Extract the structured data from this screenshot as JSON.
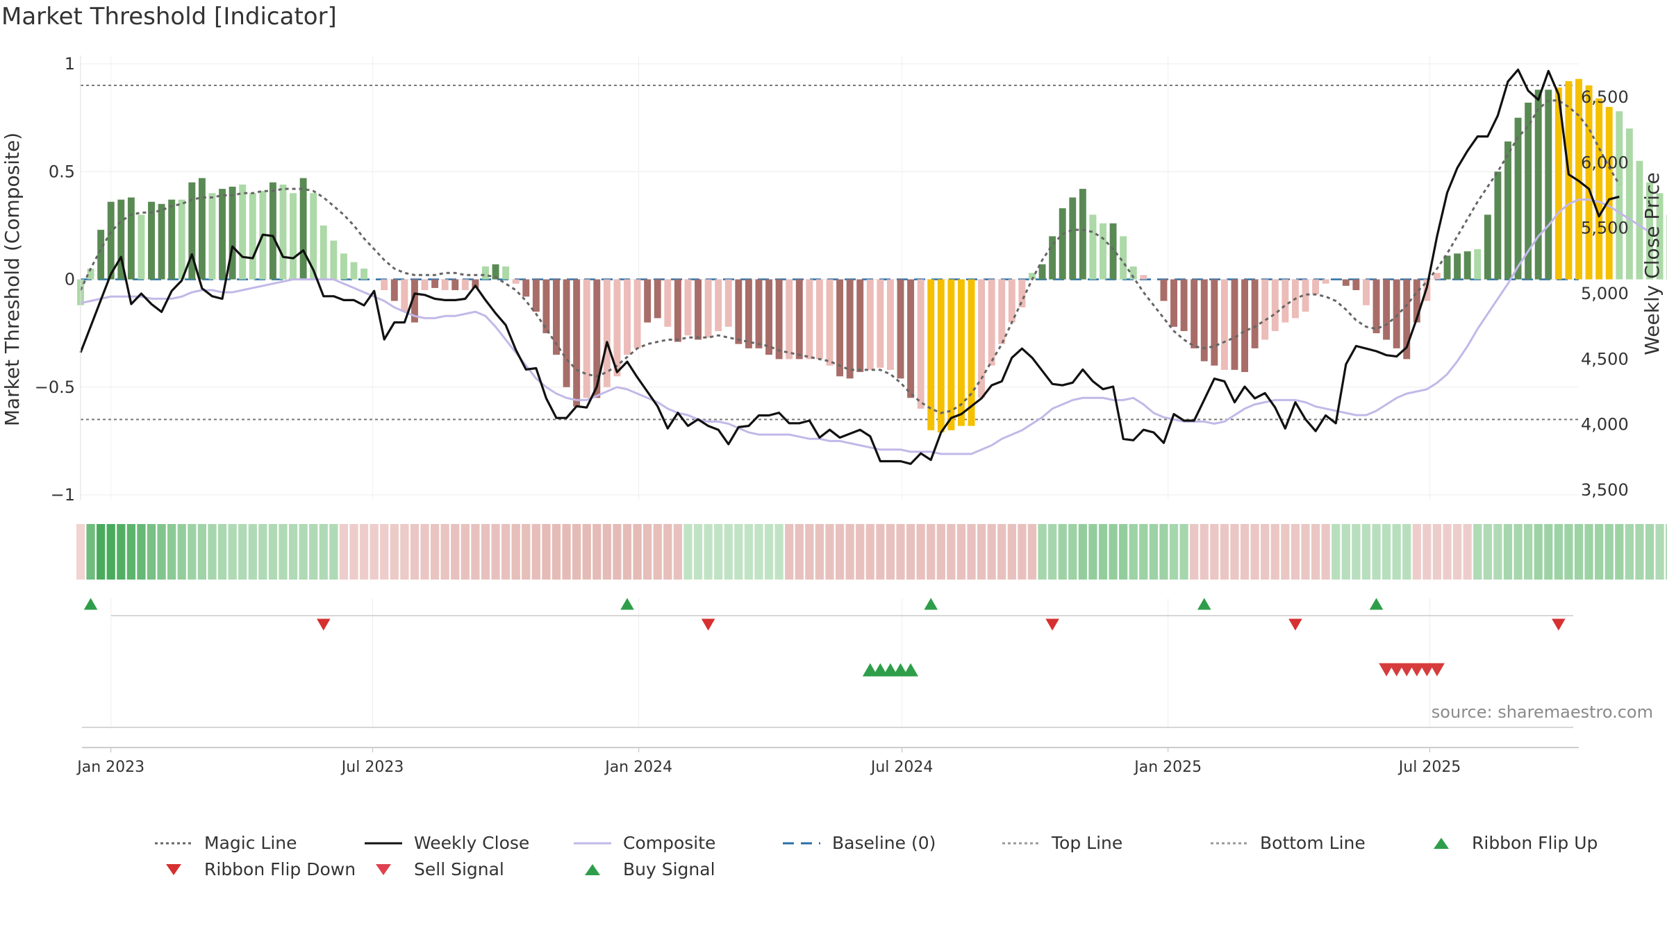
{
  "title": "Market Threshold [Indicator]",
  "source": "source: sharemaestro.com",
  "colors": {
    "bull_dark": "#5a8a54",
    "bull_light": "#acd9a7",
    "bear_dark": "#a86d68",
    "bear_light": "#ecbcb8",
    "extreme": "#f5c000",
    "weekly_close": "#111111",
    "composite": "#c2b8e8",
    "magic_line": "#666666",
    "baseline": "#2a6fa8",
    "buy": "#2e9e4a",
    "sell": "#d63c3c",
    "flip_up": "#2e9e4a",
    "flip_down": "#d63030",
    "ribbon_pos": "#3fa84f",
    "ribbon_neg": "#e8b8b5"
  },
  "legend": [
    {
      "key": "magic",
      "label": "Magic Line",
      "icon": "dotted-line-icon",
      "color": "#666666"
    },
    {
      "key": "close",
      "label": "Weekly Close",
      "icon": "solid-line-icon",
      "color": "#111111"
    },
    {
      "key": "composite",
      "label": "Composite",
      "icon": "solid-line-icon",
      "color": "#c2b8e8"
    },
    {
      "key": "baseline",
      "label": "Baseline (0)",
      "icon": "dashed-line-icon",
      "color": "#2a6fa8"
    },
    {
      "key": "top",
      "label": "Top Line",
      "icon": "dotted-line-icon",
      "color": "#999999"
    },
    {
      "key": "bottom",
      "label": "Bottom Line",
      "icon": "dotted-line-icon",
      "color": "#999999"
    },
    {
      "key": "flip_up",
      "label": "Ribbon Flip Up",
      "icon": "triangle-up-icon",
      "color": "#2e9e4a"
    },
    {
      "key": "flip_down",
      "label": "Ribbon Flip Down",
      "icon": "triangle-down-icon",
      "color": "#d63030"
    },
    {
      "key": "sell",
      "label": "Sell Signal",
      "icon": "triangle-down-icon",
      "color": "#e04050"
    },
    {
      "key": "buy",
      "label": "Buy Signal",
      "icon": "triangle-up-icon",
      "color": "#2e9e4a"
    }
  ],
  "chart_data": {
    "type": "bar",
    "title": "Market Threshold [Indicator]",
    "ylabel": "Market Threshold (Composite)",
    "y2label": "Weekly Close Price",
    "ylim": [
      -1,
      1
    ],
    "y2lim": [
      3400,
      6720
    ],
    "y_ticks": [
      1,
      0.5,
      0,
      -0.5,
      -1
    ],
    "y_tick_labels": [
      "1",
      "0.5",
      "0",
      "−0.5",
      "−1"
    ],
    "y2_ticks": [
      6500,
      6000,
      5500,
      5000,
      4500,
      4000,
      3500
    ],
    "y2_tick_labels": [
      "6,500",
      "6,000",
      "5,500",
      "5,000",
      "4,500",
      "4,000",
      "3,500"
    ],
    "x_ticks": [
      "2023-01-01",
      "2023-07-01",
      "2024-01-01",
      "2024-07-01",
      "2025-01-01",
      "2025-07-01"
    ],
    "x_tick_labels": [
      "Jan 2023",
      "Jul 2023",
      "Jan 2024",
      "Jul 2024",
      "Jan 2025",
      "Jul 2025"
    ],
    "x_range": [
      "2022-12-11",
      "2025-10-12"
    ],
    "weekly_start": "2022-12-11",
    "top_line": 0.9,
    "bottom_line": -0.65,
    "baseline": 0,
    "grid": true,
    "legend_position": "bottom",
    "composite_bars": [
      -0.12,
      0.05,
      0.23,
      0.36,
      0.37,
      0.38,
      0.3,
      0.36,
      0.35,
      0.37,
      0.37,
      0.45,
      0.47,
      0.4,
      0.42,
      0.43,
      0.44,
      0.4,
      0.41,
      0.45,
      0.44,
      0.4,
      0.47,
      0.4,
      0.25,
      0.18,
      0.12,
      0.08,
      0.05,
      0,
      -0.05,
      -0.1,
      -0.15,
      -0.2,
      -0.05,
      -0.04,
      -0.05,
      -0.05,
      -0.05,
      -0.04,
      0.06,
      0.07,
      0.06,
      -0.02,
      -0.08,
      -0.15,
      -0.25,
      -0.35,
      -0.5,
      -0.59,
      -0.55,
      -0.55,
      -0.5,
      -0.45,
      -0.35,
      -0.32,
      -0.2,
      -0.18,
      -0.22,
      -0.29,
      -0.26,
      -0.28,
      -0.27,
      -0.24,
      -0.22,
      -0.3,
      -0.32,
      -0.32,
      -0.35,
      -0.37,
      -0.37,
      -0.37,
      -0.37,
      -0.37,
      -0.4,
      -0.45,
      -0.46,
      -0.43,
      -0.42,
      -0.41,
      -0.42,
      -0.46,
      -0.55,
      -0.6,
      -0.7,
      -0.71,
      -0.7,
      -0.68,
      -0.68,
      -0.55,
      -0.4,
      -0.3,
      -0.2,
      -0.13,
      0.03,
      0.07,
      0.2,
      0.33,
      0.38,
      0.42,
      0.3,
      0.26,
      0.26,
      0.2,
      0.06,
      0.02,
      0,
      -0.1,
      -0.22,
      -0.24,
      -0.32,
      -0.38,
      -0.4,
      -0.42,
      -0.42,
      -0.43,
      -0.32,
      -0.28,
      -0.24,
      -0.2,
      -0.18,
      -0.15,
      -0.07,
      -0.02,
      0,
      -0.03,
      -0.05,
      -0.12,
      -0.25,
      -0.28,
      -0.32,
      -0.37,
      -0.2,
      -0.1,
      0.03,
      0.11,
      0.12,
      0.13,
      0.14,
      0.3,
      0.5,
      0.64,
      0.75,
      0.82,
      0.88,
      0.88,
      0.89,
      0.92,
      0.93,
      0.9,
      0.84,
      0.8,
      0.78,
      0.7,
      0.55,
      0.45,
      0.4,
      0.3,
      0.27,
      0.21
    ],
    "bar_shade": [
      "bl",
      "bl",
      "bd",
      "bd",
      "bd",
      "bd",
      "bl",
      "bd",
      "bd",
      "bd",
      "bl",
      "bd",
      "bd",
      "bl",
      "bd",
      "bd",
      "bl",
      "bl",
      "bl",
      "bd",
      "bl",
      "bl",
      "bd",
      "bl",
      "bl",
      "bl",
      "bl",
      "bl",
      "bl",
      "bl",
      "rl",
      "rd",
      "rl",
      "rd",
      "rl",
      "rd",
      "rl",
      "rd",
      "rl",
      "rd",
      "bl",
      "bd",
      "bl",
      "rl",
      "rd",
      "rd",
      "rd",
      "rd",
      "rd",
      "rd",
      "rl",
      "rd",
      "rl",
      "rl",
      "rl",
      "rl",
      "rd",
      "rd",
      "rl",
      "rd",
      "rl",
      "rd",
      "rl",
      "rl",
      "rl",
      "rd",
      "rd",
      "rd",
      "rd",
      "rd",
      "rl",
      "rd",
      "rl",
      "rl",
      "rl",
      "rd",
      "rd",
      "rd",
      "rl",
      "rl",
      "rl",
      "rd",
      "rd",
      "rl",
      "yy",
      "yy",
      "yy",
      "yy",
      "yy",
      "rl",
      "rl",
      "rl",
      "rl",
      "rl",
      "bl",
      "bd",
      "bd",
      "bd",
      "bd",
      "bd",
      "bl",
      "bl",
      "bd",
      "bl",
      "bl",
      "rl",
      "rl",
      "rd",
      "rd",
      "rd",
      "rd",
      "rd",
      "rd",
      "rl",
      "rd",
      "rd",
      "rd",
      "rl",
      "rl",
      "rl",
      "rl",
      "rl",
      "rl",
      "rl",
      "rl",
      "rd",
      "rd",
      "rl",
      "rd",
      "rd",
      "rd",
      "rd",
      "rd",
      "rl",
      "rl",
      "bd",
      "bd",
      "bd",
      "bl",
      "bd",
      "bd",
      "bd",
      "bd",
      "bd",
      "bd",
      "bd",
      "yy",
      "yy",
      "yy",
      "yy",
      "yy",
      "yy",
      "bl",
      "bl",
      "bl",
      "bl",
      "bl",
      "bl",
      "bl",
      "bl",
      "bl",
      "bl"
    ],
    "magic_line": [
      -0.05,
      0.05,
      0.14,
      0.22,
      0.27,
      0.3,
      0.31,
      0.31,
      0.32,
      0.34,
      0.35,
      0.37,
      0.38,
      0.38,
      0.39,
      0.39,
      0.4,
      0.4,
      0.41,
      0.41,
      0.42,
      0.42,
      0.42,
      0.41,
      0.38,
      0.34,
      0.3,
      0.25,
      0.19,
      0.14,
      0.09,
      0.05,
      0.03,
      0.02,
      0.02,
      0.02,
      0.03,
      0.03,
      0.02,
      0.02,
      0.02,
      0.01,
      -0.02,
      -0.05,
      -0.1,
      -0.16,
      -0.23,
      -0.3,
      -0.37,
      -0.42,
      -0.44,
      -0.45,
      -0.43,
      -0.4,
      -0.36,
      -0.32,
      -0.3,
      -0.29,
      -0.28,
      -0.28,
      -0.27,
      -0.27,
      -0.27,
      -0.26,
      -0.27,
      -0.28,
      -0.29,
      -0.3,
      -0.31,
      -0.33,
      -0.34,
      -0.35,
      -0.36,
      -0.37,
      -0.38,
      -0.4,
      -0.42,
      -0.42,
      -0.42,
      -0.42,
      -0.44,
      -0.48,
      -0.53,
      -0.57,
      -0.6,
      -0.62,
      -0.61,
      -0.58,
      -0.53,
      -0.46,
      -0.38,
      -0.3,
      -0.2,
      -0.1,
      0,
      0.09,
      0.16,
      0.21,
      0.23,
      0.23,
      0.22,
      0.19,
      0.14,
      0.08,
      0.01,
      -0.06,
      -0.12,
      -0.18,
      -0.24,
      -0.28,
      -0.31,
      -0.32,
      -0.31,
      -0.29,
      -0.27,
      -0.24,
      -0.22,
      -0.19,
      -0.16,
      -0.12,
      -0.09,
      -0.07,
      -0.07,
      -0.08,
      -0.1,
      -0.14,
      -0.19,
      -0.22,
      -0.23,
      -0.21,
      -0.17,
      -0.12,
      -0.06,
      -0.01,
      0.05,
      0.12,
      0.2,
      0.28,
      0.36,
      0.43,
      0.5,
      0.58,
      0.66,
      0.71,
      0.79,
      0.83,
      0.83,
      0.8,
      0.76,
      0.7,
      0.61,
      0.52,
      0.44
    ],
    "weekly_close": [
      4550,
      4750,
      4950,
      5150,
      5280,
      4920,
      5000,
      4920,
      4860,
      5020,
      5100,
      5300,
      5040,
      4980,
      4960,
      5360,
      5280,
      5270,
      5450,
      5440,
      5280,
      5270,
      5330,
      5180,
      4980,
      4980,
      4950,
      4950,
      4910,
      5020,
      4650,
      4780,
      4780,
      5000,
      4990,
      4960,
      4950,
      4950,
      4960,
      5060,
      4950,
      4850,
      4760,
      4570,
      4420,
      4430,
      4200,
      4050,
      4050,
      4140,
      4130,
      4290,
      4630,
      4400,
      4480,
      4360,
      4250,
      4140,
      3970,
      4090,
      3990,
      4040,
      3990,
      3960,
      3850,
      3980,
      3990,
      4070,
      4070,
      4090,
      4010,
      4010,
      4030,
      3900,
      3960,
      3900,
      3930,
      3960,
      3910,
      3720,
      3720,
      3720,
      3700,
      3780,
      3730,
      3940,
      4050,
      4080,
      4140,
      4200,
      4300,
      4330,
      4510,
      4580,
      4510,
      4410,
      4310,
      4300,
      4320,
      4420,
      4330,
      4270,
      4290,
      3890,
      3880,
      3960,
      3940,
      3860,
      4080,
      4030,
      4030,
      4190,
      4350,
      4330,
      4170,
      4290,
      4200,
      4240,
      4130,
      3970,
      4170,
      4040,
      3950,
      4070,
      4010,
      4460,
      4600,
      4580,
      4560,
      4530,
      4520,
      4590,
      4810,
      5050,
      5440,
      5770,
      5960,
      6090,
      6200,
      6200,
      6360,
      6620,
      6710,
      6550,
      6480,
      6700,
      6520,
      5910,
      5860,
      5800,
      5590,
      5720,
      5740
    ],
    "composite_line": [
      -0.11,
      -0.1,
      -0.09,
      -0.08,
      -0.08,
      -0.08,
      -0.08,
      -0.09,
      -0.09,
      -0.09,
      -0.08,
      -0.06,
      -0.05,
      -0.05,
      -0.06,
      -0.06,
      -0.05,
      -0.04,
      -0.03,
      -0.02,
      -0.01,
      0,
      0,
      0,
      0,
      0,
      -0.02,
      -0.04,
      -0.06,
      -0.08,
      -0.1,
      -0.13,
      -0.15,
      -0.17,
      -0.18,
      -0.18,
      -0.17,
      -0.17,
      -0.16,
      -0.15,
      -0.17,
      -0.22,
      -0.28,
      -0.34,
      -0.4,
      -0.46,
      -0.5,
      -0.53,
      -0.55,
      -0.56,
      -0.56,
      -0.54,
      -0.52,
      -0.5,
      -0.51,
      -0.53,
      -0.55,
      -0.57,
      -0.6,
      -0.62,
      -0.63,
      -0.65,
      -0.66,
      -0.66,
      -0.67,
      -0.69,
      -0.71,
      -0.72,
      -0.72,
      -0.72,
      -0.72,
      -0.73,
      -0.74,
      -0.74,
      -0.75,
      -0.75,
      -0.76,
      -0.77,
      -0.78,
      -0.79,
      -0.79,
      -0.79,
      -0.8,
      -0.8,
      -0.8,
      -0.81,
      -0.81,
      -0.81,
      -0.81,
      -0.79,
      -0.77,
      -0.74,
      -0.72,
      -0.7,
      -0.67,
      -0.64,
      -0.6,
      -0.58,
      -0.56,
      -0.55,
      -0.55,
      -0.55,
      -0.56,
      -0.56,
      -0.55,
      -0.58,
      -0.62,
      -0.64,
      -0.65,
      -0.66,
      -0.66,
      -0.66,
      -0.67,
      -0.66,
      -0.63,
      -0.6,
      -0.58,
      -0.57,
      -0.56,
      -0.56,
      -0.56,
      -0.57,
      -0.59,
      -0.6,
      -0.61,
      -0.62,
      -0.63,
      -0.63,
      -0.61,
      -0.58,
      -0.55,
      -0.53,
      -0.52,
      -0.51,
      -0.48,
      -0.44,
      -0.38,
      -0.31,
      -0.23,
      -0.16,
      -0.09,
      -0.02,
      0.06,
      0.13,
      0.2,
      0.25,
      0.31,
      0.35,
      0.37,
      0.37,
      0.36,
      0.34,
      0.31,
      0.28,
      0.25,
      0.22
    ],
    "ribbon": [
      -0.2,
      0.65,
      0.85,
      0.85,
      0.8,
      0.75,
      0.7,
      0.6,
      0.55,
      0.5,
      0.45,
      0.4,
      0.38,
      0.35,
      0.33,
      0.3,
      0.3,
      0.3,
      0.3,
      0.3,
      0.3,
      0.3,
      0.3,
      0.3,
      0.3,
      0.3,
      -0.3,
      -0.3,
      -0.3,
      -0.3,
      -0.3,
      -0.35,
      -0.35,
      -0.4,
      -0.4,
      -0.45,
      -0.45,
      -0.5,
      -0.5,
      -0.5,
      -0.5,
      -0.5,
      -0.5,
      -0.55,
      -0.55,
      -0.55,
      -0.6,
      -0.6,
      -0.6,
      -0.6,
      -0.6,
      -0.6,
      -0.6,
      -0.6,
      -0.6,
      -0.6,
      -0.55,
      -0.55,
      -0.55,
      -0.5,
      0.2,
      0.2,
      0.2,
      0.2,
      0.2,
      0.2,
      0.2,
      0.2,
      0.2,
      0.2,
      -0.5,
      -0.5,
      -0.5,
      -0.5,
      -0.5,
      -0.5,
      -0.5,
      -0.5,
      -0.5,
      -0.5,
      -0.5,
      -0.5,
      -0.5,
      -0.5,
      -0.5,
      -0.5,
      -0.5,
      -0.5,
      -0.5,
      -0.5,
      -0.5,
      -0.5,
      -0.5,
      -0.5,
      -0.5,
      0.35,
      0.35,
      0.4,
      0.4,
      0.45,
      0.45,
      0.45,
      0.45,
      0.45,
      0.4,
      0.4,
      0.4,
      0.4,
      0.35,
      0.35,
      -0.4,
      -0.4,
      -0.4,
      -0.4,
      -0.4,
      -0.4,
      -0.4,
      -0.4,
      -0.4,
      -0.4,
      -0.4,
      -0.4,
      -0.4,
      -0.4,
      0.25,
      0.25,
      0.25,
      0.25,
      0.25,
      0.25,
      0.25,
      0.25,
      -0.3,
      -0.3,
      -0.3,
      -0.3,
      -0.3,
      -0.3,
      0.3,
      0.3,
      0.3,
      0.35,
      0.35,
      0.35,
      0.4,
      0.4,
      0.4,
      0.4,
      0.4,
      0.4,
      0.4,
      0.4,
      0.4,
      0.35,
      0.35,
      0.35,
      0.3,
      0.3,
      0.3,
      0.3,
      -0.3,
      -0.3,
      -0.3
    ],
    "ribbon_flip_up": [
      "2022-12-18",
      "2023-12-24",
      "2024-07-21",
      "2025-01-26",
      "2025-05-25"
    ],
    "ribbon_flip_down": [
      "2023-05-28",
      "2024-02-18",
      "2024-10-13",
      "2025-03-30",
      "2025-09-28"
    ],
    "buy_signals": [
      "2024-06-09",
      "2024-06-16",
      "2024-06-23",
      "2024-06-30",
      "2024-07-07"
    ],
    "sell_signals": [
      "2025-06-01",
      "2025-06-08",
      "2025-06-15",
      "2025-06-22",
      "2025-06-29",
      "2025-07-06"
    ]
  }
}
